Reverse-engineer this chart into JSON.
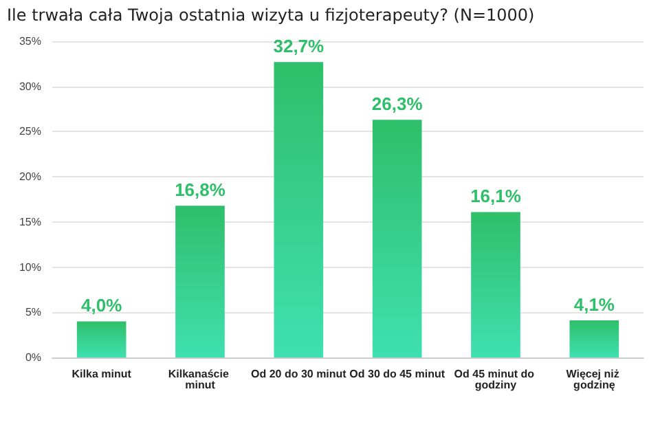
{
  "chart_data": {
    "type": "bar",
    "title": "Ile trwała cała Twoja ostatnia wizyta u fizjoterapeuty? (N=1000)",
    "categories": [
      "Kilka minut",
      "Kilkanaście minut",
      "Od 20 do 30 minut",
      "Od 30 do 45 minut",
      "Od 45 minut do godziny",
      "Więcej niż godzinę"
    ],
    "values": [
      4.0,
      16.8,
      32.7,
      26.3,
      16.1,
      4.1
    ],
    "value_labels": [
      "4,0%",
      "16,8%",
      "32,7%",
      "26,3%",
      "16,1%",
      "4,1%"
    ],
    "color": "#2fbf6a",
    "ylim": [
      0,
      35
    ],
    "yticks": [
      {
        "value": 0,
        "label": "0%"
      },
      {
        "value": 5,
        "label": "5%"
      },
      {
        "value": 10,
        "label": "10%"
      },
      {
        "value": 15,
        "label": "15%"
      },
      {
        "value": 20,
        "label": "20%"
      },
      {
        "value": 25,
        "label": "25%"
      },
      {
        "value": 30,
        "label": "30%"
      },
      {
        "value": 35,
        "label": "35%"
      }
    ],
    "grid": "y"
  }
}
